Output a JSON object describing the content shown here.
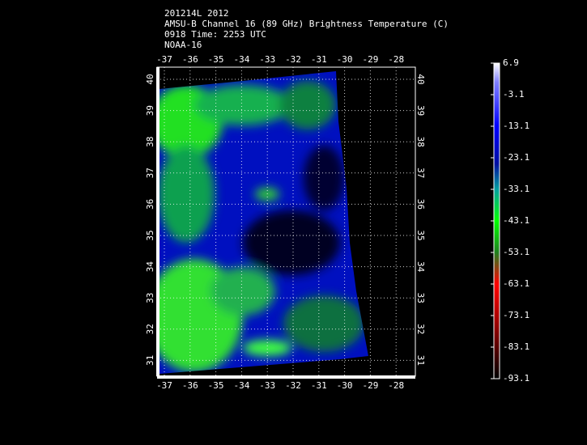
{
  "header": {
    "lines": [
      "201214L 2012",
      "AMSU-B Channel 16 (89 GHz) Brightness Temperature (C)",
      "0918 Time: 2253 UTC",
      "NOAA-16"
    ]
  },
  "map": {
    "lon_labels": [
      -37,
      -36,
      -35,
      -34,
      -33,
      -32,
      -31,
      -30,
      -29,
      -28
    ],
    "lat_labels": [
      40,
      39,
      38,
      37,
      36,
      35,
      34,
      33,
      32,
      31
    ]
  },
  "colorbar": {
    "labels": [
      6.9,
      -3.1,
      -13.1,
      -23.1,
      -33.1,
      -43.1,
      -53.1,
      -63.1,
      -73.1,
      -83.1,
      -93.1
    ]
  }
}
